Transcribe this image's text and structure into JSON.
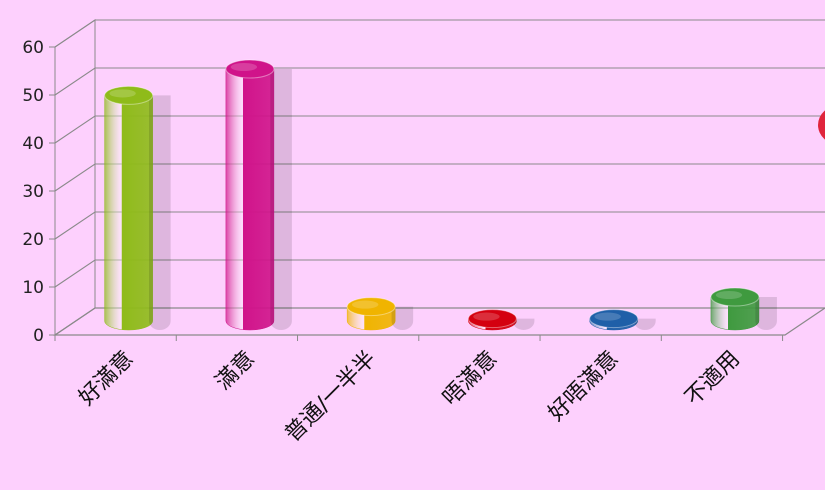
{
  "chart_data": {
    "type": "bar",
    "style": "3d-cylinder",
    "categories": [
      "好滿意",
      "滿意",
      "普通/一半半",
      "唔滿意",
      "好唔滿意",
      "不適用"
    ],
    "values": [
      47,
      52.5,
      3,
      0.5,
      0.5,
      5
    ],
    "yticks": [
      0,
      10,
      20,
      30,
      40,
      50,
      60
    ],
    "ylim": [
      0,
      60
    ],
    "grid": true,
    "title": "",
    "xlabel": "",
    "ylabel": ""
  },
  "colors": {
    "background": "#fdd0fd",
    "gridline": "#8a8a8a",
    "bars": [
      "#8fbb1a",
      "#d0138a",
      "#f0b400",
      "#d40010",
      "#1f5fa8",
      "#3f9a3f"
    ],
    "edge_pie_fragment": "#e0243c"
  }
}
